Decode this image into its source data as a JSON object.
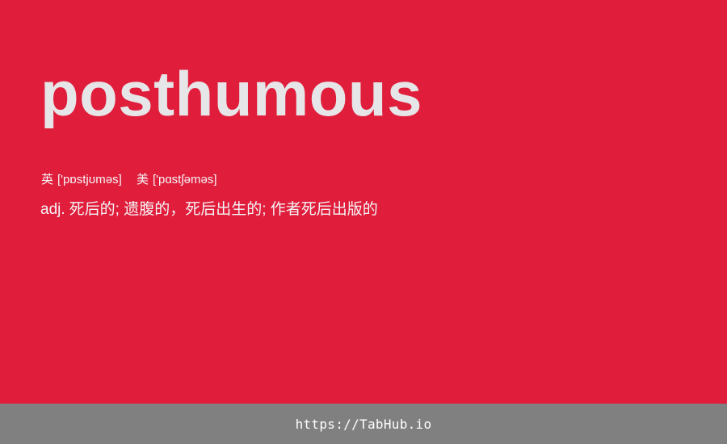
{
  "entry": {
    "word": "posthumous",
    "phonetics": [
      {
        "label": "英",
        "ipa": "['pɒstjʊməs]"
      },
      {
        "label": "美",
        "ipa": "['pɑstʃəməs]"
      }
    ],
    "definition": {
      "part_of_speech": "adj.",
      "meaning": "死后的; 遗腹的，死后出生的; 作者死后出版的"
    }
  },
  "footer": {
    "link_text": "https://TabHub.io"
  },
  "colors": {
    "background": "#e01e3c",
    "word": "#e6e6e8",
    "text": "#f4f4f6",
    "footer_background": "#808080"
  }
}
